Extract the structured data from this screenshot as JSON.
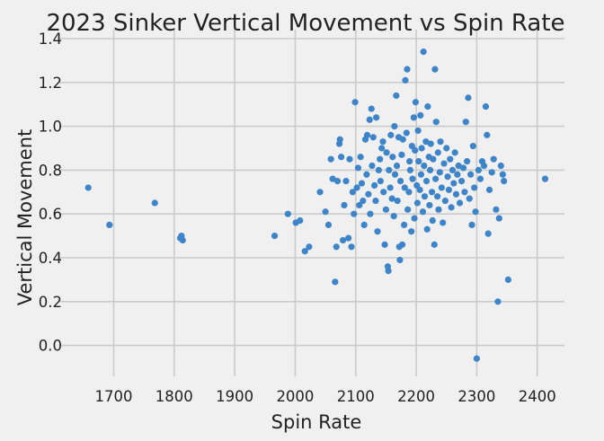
{
  "chart_data": {
    "type": "scatter",
    "title": "2023 Sinker Vertical Movement vs Spin Rate",
    "xlabel": "Spin Rate",
    "ylabel": "Vertical Movement",
    "xlim": [
      1625,
      2445
    ],
    "ylim": [
      -0.1,
      1.4
    ],
    "xticks": [
      1700,
      1800,
      1900,
      2000,
      2100,
      2200,
      2300,
      2400
    ],
    "yticks": [
      0.0,
      0.2,
      0.4,
      0.6,
      0.8,
      1.0,
      1.2,
      1.4
    ],
    "grid": true,
    "marker_color": "#3e84c9",
    "background": "#f0f0f0",
    "points": [
      [
        1658,
        0.72
      ],
      [
        1693,
        0.55
      ],
      [
        1768,
        0.65
      ],
      [
        1810,
        0.49
      ],
      [
        1812,
        0.5
      ],
      [
        1814,
        0.48
      ],
      [
        1966,
        0.5
      ],
      [
        1988,
        0.6
      ],
      [
        2001,
        0.56
      ],
      [
        2008,
        0.57
      ],
      [
        2016,
        0.43
      ],
      [
        2023,
        0.45
      ],
      [
        2041,
        0.7
      ],
      [
        2050,
        0.61
      ],
      [
        2055,
        0.55
      ],
      [
        2059,
        0.85
      ],
      [
        2062,
        0.76
      ],
      [
        2066,
        0.29
      ],
      [
        2068,
        0.45
      ],
      [
        2070,
        0.75
      ],
      [
        2073,
        0.92
      ],
      [
        2074,
        0.94
      ],
      [
        2076,
        0.86
      ],
      [
        2079,
        0.48
      ],
      [
        2081,
        0.64
      ],
      [
        2084,
        0.75
      ],
      [
        2088,
        0.49
      ],
      [
        2090,
        0.85
      ],
      [
        2093,
        0.45
      ],
      [
        2095,
        0.7
      ],
      [
        2097,
        0.6
      ],
      [
        2099,
        1.11
      ],
      [
        2102,
        0.72
      ],
      [
        2104,
        0.81
      ],
      [
        2106,
        0.64
      ],
      [
        2108,
        0.86
      ],
      [
        2110,
        0.74
      ],
      [
        2112,
        0.66
      ],
      [
        2114,
        0.55
      ],
      [
        2116,
        0.94
      ],
      [
        2118,
        0.78
      ],
      [
        2119,
        0.96
      ],
      [
        2121,
        0.69
      ],
      [
        2123,
        1.03
      ],
      [
        2124,
        0.6
      ],
      [
        2126,
        1.08
      ],
      [
        2127,
        0.82
      ],
      [
        2129,
        0.95
      ],
      [
        2131,
        0.73
      ],
      [
        2133,
        0.66
      ],
      [
        2134,
        1.04
      ],
      [
        2136,
        0.52
      ],
      [
        2138,
        0.8
      ],
      [
        2140,
        0.85
      ],
      [
        2141,
        0.75
      ],
      [
        2143,
        0.9
      ],
      [
        2145,
        0.93
      ],
      [
        2146,
        0.7
      ],
      [
        2148,
        0.46
      ],
      [
        2150,
        0.62
      ],
      [
        2151,
        0.88
      ],
      [
        2153,
        0.36
      ],
      [
        2154,
        0.34
      ],
      [
        2155,
        0.8
      ],
      [
        2157,
        0.72
      ],
      [
        2158,
        0.96
      ],
      [
        2160,
        0.67
      ],
      [
        2161,
        0.86
      ],
      [
        2163,
        0.59
      ],
      [
        2164,
        1.0
      ],
      [
        2165,
        0.78
      ],
      [
        2167,
        1.14
      ],
      [
        2168,
        0.82
      ],
      [
        2169,
        0.66
      ],
      [
        2171,
        0.95
      ],
      [
        2172,
        0.45
      ],
      [
        2173,
        0.39
      ],
      [
        2174,
        0.75
      ],
      [
        2176,
        0.87
      ],
      [
        2177,
        0.46
      ],
      [
        2178,
        0.94
      ],
      [
        2180,
        0.55
      ],
      [
        2181,
        0.72
      ],
      [
        2182,
        1.21
      ],
      [
        2184,
        0.97
      ],
      [
        2185,
        1.26
      ],
      [
        2186,
        0.62
      ],
      [
        2188,
        0.7
      ],
      [
        2189,
        0.84
      ],
      [
        2190,
        0.8
      ],
      [
        2192,
        0.52
      ],
      [
        2193,
        0.91
      ],
      [
        2194,
        0.76
      ],
      [
        2196,
        1.04
      ],
      [
        2197,
        0.58
      ],
      [
        2198,
        0.89
      ],
      [
        2199,
        1.11
      ],
      [
        2201,
        0.73
      ],
      [
        2202,
        0.65
      ],
      [
        2203,
        0.98
      ],
      [
        2204,
        0.84
      ],
      [
        2206,
        0.71
      ],
      [
        2207,
        1.05
      ],
      [
        2208,
        0.78
      ],
      [
        2209,
        0.9
      ],
      [
        2211,
        0.61
      ],
      [
        2212,
        1.34
      ],
      [
        2213,
        0.82
      ],
      [
        2214,
        0.68
      ],
      [
        2216,
        0.93
      ],
      [
        2217,
        0.75
      ],
      [
        2218,
        0.53
      ],
      [
        2219,
        1.09
      ],
      [
        2221,
        0.86
      ],
      [
        2222,
        0.64
      ],
      [
        2223,
        0.8
      ],
      [
        2224,
        0.92
      ],
      [
        2226,
        0.7
      ],
      [
        2227,
        0.57
      ],
      [
        2228,
        0.85
      ],
      [
        2230,
        0.46
      ],
      [
        2231,
        1.26
      ],
      [
        2232,
        0.76
      ],
      [
        2233,
        1.02
      ],
      [
        2235,
        0.68
      ],
      [
        2236,
        0.88
      ],
      [
        2237,
        0.62
      ],
      [
        2239,
        0.79
      ],
      [
        2240,
        0.93
      ],
      [
        2242,
        0.72
      ],
      [
        2244,
        0.56
      ],
      [
        2246,
        0.83
      ],
      [
        2248,
        0.66
      ],
      [
        2250,
        0.9
      ],
      [
        2252,
        0.77
      ],
      [
        2254,
        0.71
      ],
      [
        2256,
        0.85
      ],
      [
        2258,
        0.63
      ],
      [
        2260,
        0.8
      ],
      [
        2262,
        0.74
      ],
      [
        2264,
        0.88
      ],
      [
        2266,
        0.69
      ],
      [
        2268,
        0.78
      ],
      [
        2270,
        0.82
      ],
      [
        2272,
        0.65
      ],
      [
        2275,
        0.75
      ],
      [
        2278,
        0.81
      ],
      [
        2280,
        0.7
      ],
      [
        2282,
        1.02
      ],
      [
        2284,
        0.84
      ],
      [
        2286,
        1.13
      ],
      [
        2288,
        0.67
      ],
      [
        2290,
        0.78
      ],
      [
        2292,
        0.55
      ],
      [
        2294,
        0.91
      ],
      [
        2296,
        0.72
      ],
      [
        2298,
        0.61
      ],
      [
        2300,
        -0.06
      ],
      [
        2303,
        0.8
      ],
      [
        2306,
        0.76
      ],
      [
        2309,
        0.84
      ],
      [
        2312,
        0.82
      ],
      [
        2315,
        1.09
      ],
      [
        2317,
        0.96
      ],
      [
        2319,
        0.51
      ],
      [
        2321,
        0.71
      ],
      [
        2325,
        0.79
      ],
      [
        2328,
        0.85
      ],
      [
        2332,
        0.62
      ],
      [
        2335,
        0.2
      ],
      [
        2337,
        0.58
      ],
      [
        2340,
        0.82
      ],
      [
        2343,
        0.78
      ],
      [
        2345,
        0.75
      ],
      [
        2352,
        0.3
      ],
      [
        2413,
        0.76
      ]
    ]
  }
}
